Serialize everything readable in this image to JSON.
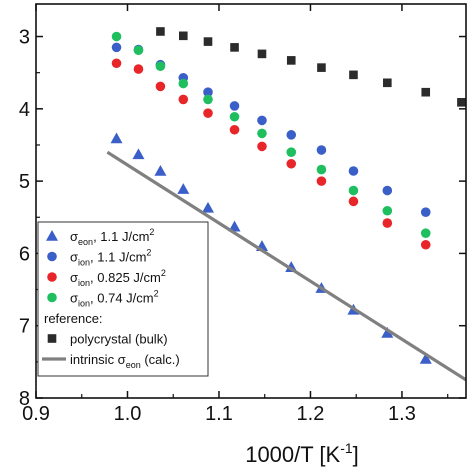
{
  "chart_data": {
    "type": "scatter",
    "xlabel": "1000/T [K",
    "xlabel_sup": "-1",
    "xlabel_end": "]",
    "ylabel": "",
    "xlim": [
      0.9,
      1.37
    ],
    "ylim": [
      2.55,
      8.0
    ],
    "y_inverted": true,
    "x_ticks": [
      0.9,
      1.0,
      1.1,
      1.2,
      1.3
    ],
    "x_tick_labels": [
      "0.9",
      "1.0",
      "1.1",
      "1.2",
      "1.3"
    ],
    "y_ticks": [
      3,
      4,
      5,
      6,
      7,
      8
    ],
    "y_tick_labels": [
      "3",
      "4",
      "5",
      "6",
      "7",
      "8"
    ],
    "grid": false,
    "legend_position": "bottom-left",
    "legend_heading": "reference:",
    "series": [
      {
        "name": "σeon, 1.1 J/cm2",
        "name_main": "σ",
        "name_sub": "eon",
        "name_rest": ", 1.1 J/cm",
        "name_sup": "2",
        "marker": "triangle",
        "color": "#3a5fc8",
        "x": [
          0.988,
          1.012,
          1.036,
          1.061,
          1.088,
          1.117,
          1.147,
          1.179,
          1.212,
          1.247,
          1.284,
          1.326
        ],
        "y": [
          4.41,
          4.63,
          4.86,
          5.11,
          5.37,
          5.63,
          5.9,
          6.19,
          6.48,
          6.78,
          7.1,
          7.46
        ]
      },
      {
        "name": "σion, 1.1 J/cm2",
        "name_main": "σ",
        "name_sub": "ion",
        "name_rest": ", 1.1 J/cm",
        "name_sup": "2",
        "marker": "circle",
        "color": "#3a5fc8",
        "x": [
          0.988,
          1.012,
          1.036,
          1.061,
          1.088,
          1.117,
          1.147,
          1.179,
          1.212,
          1.247,
          1.284,
          1.326
        ],
        "y": [
          3.15,
          3.18,
          3.39,
          3.57,
          3.77,
          3.96,
          4.16,
          4.36,
          4.57,
          4.86,
          5.13,
          5.43
        ]
      },
      {
        "name": "σion, 0.825 J/cm2",
        "name_main": "σ",
        "name_sub": "ion",
        "name_rest": ", 0.825 J/cm",
        "name_sup": "2",
        "marker": "circle",
        "color": "#e8262a",
        "x": [
          0.988,
          1.012,
          1.036,
          1.061,
          1.088,
          1.117,
          1.147,
          1.179,
          1.212,
          1.247,
          1.284,
          1.326
        ],
        "y": [
          3.37,
          3.45,
          3.69,
          3.87,
          4.06,
          4.29,
          4.52,
          4.76,
          5.0,
          5.28,
          5.58,
          5.88
        ]
      },
      {
        "name": "σion, 0.74 J/cm2",
        "name_main": "σ",
        "name_sub": "ion",
        "name_rest": ", 0.74 J/cm",
        "name_sup": "2",
        "marker": "circle",
        "color": "#1fbf60",
        "x": [
          0.988,
          1.012,
          1.036,
          1.061,
          1.088,
          1.117,
          1.147,
          1.179,
          1.212,
          1.247,
          1.284,
          1.326
        ],
        "y": [
          3.0,
          3.19,
          3.41,
          3.65,
          3.87,
          4.11,
          4.34,
          4.6,
          4.84,
          5.13,
          5.41,
          5.72
        ]
      },
      {
        "name": "polycrystal (bulk)",
        "marker": "square",
        "color": "#2b2b2b",
        "x": [
          1.036,
          1.061,
          1.088,
          1.117,
          1.147,
          1.179,
          1.212,
          1.247,
          1.284,
          1.326,
          1.365
        ],
        "y": [
          2.93,
          2.99,
          3.07,
          3.15,
          3.24,
          3.33,
          3.43,
          3.53,
          3.64,
          3.77,
          3.91
        ]
      },
      {
        "name": "intrinsic σeon (calc.)",
        "name_main": "intrinsic σ",
        "name_sub": "eon",
        "name_rest": " (calc.)",
        "marker": "line",
        "color": "#808080",
        "x": [
          0.978,
          1.37
        ],
        "y": [
          4.6,
          7.75
        ]
      }
    ]
  }
}
